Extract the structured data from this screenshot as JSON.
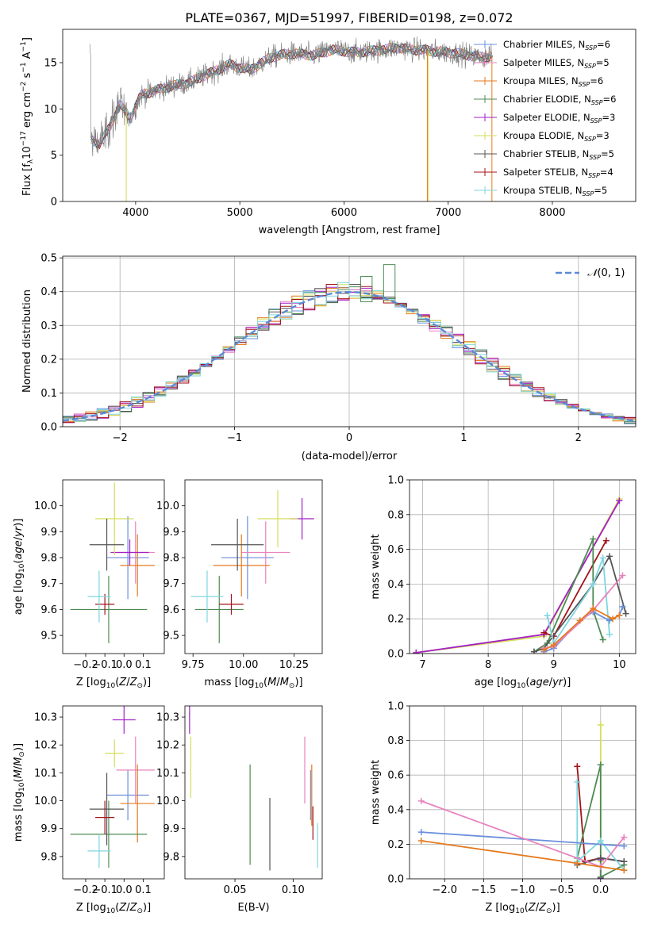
{
  "page_title": "PLATE=0367, MJD=51997, FIBERID=0198, z=0.072",
  "colors": {
    "CM": "#6a8fdc",
    "SM": "#e882bf",
    "KM": "#e57a1f",
    "CE": "#4e8a54",
    "SE": "#a31fc4",
    "KE": "#d5dd5a",
    "CS": "#555555",
    "SS": "#a3131a",
    "KS": "#7ed6df",
    "gauss": "#5b8ad6"
  },
  "chart_data": [
    {
      "type": "line",
      "name": "spectrum",
      "xlabel": "wavelength [Angstrom, rest frame]",
      "ylabel": "Flux [f",
      "xlim": [
        3300,
        8800
      ],
      "ylim": [
        0,
        18.6
      ],
      "xticks": [
        "4000",
        "5000",
        "6000",
        "7000",
        "8000"
      ],
      "yticks": [
        "0",
        "5",
        "10",
        "15"
      ],
      "spectrum_knots": [
        [
          3570,
          6.8
        ],
        [
          3650,
          6.2
        ],
        [
          3750,
          8.0
        ],
        [
          3850,
          10.5
        ],
        [
          3950,
          9.0
        ],
        [
          4050,
          11.5
        ],
        [
          4200,
          12.0
        ],
        [
          4350,
          12.5
        ],
        [
          4500,
          12.8
        ],
        [
          4700,
          13.8
        ],
        [
          4900,
          14.8
        ],
        [
          5100,
          14.2
        ],
        [
          5300,
          15.6
        ],
        [
          5500,
          16.0
        ],
        [
          5700,
          15.8
        ],
        [
          5900,
          16.4
        ],
        [
          6100,
          16.1
        ],
        [
          6300,
          16.3
        ],
        [
          6500,
          16.6
        ],
        [
          6700,
          16.4
        ],
        [
          6900,
          16.2
        ],
        [
          7100,
          16.0
        ],
        [
          7300,
          15.6
        ],
        [
          7420,
          15.7
        ]
      ],
      "legend": [
        {
          "label": "Chabrier MILES, N",
          "key": "CM",
          "n": "=6"
        },
        {
          "label": "Salpeter MILES, N",
          "key": "SM",
          "n": "=5"
        },
        {
          "label": "Kroupa MILES, N",
          "key": "KM",
          "n": "=6"
        },
        {
          "label": "Chabrier ELODIE, N",
          "key": "CE",
          "n": "=6"
        },
        {
          "label": "Salpeter ELODIE, N",
          "key": "SE",
          "n": "=3"
        },
        {
          "label": "Kroupa ELODIE, N",
          "key": "KE",
          "n": "=3"
        },
        {
          "label": "Chabrier STELIB, N",
          "key": "CS",
          "n": "=5"
        },
        {
          "label": "Salpeter STELIB, N",
          "key": "SS",
          "n": "=4"
        },
        {
          "label": "Kroupa STELIB, N",
          "key": "KS",
          "n": "=5"
        }
      ]
    },
    {
      "type": "histogram",
      "name": "residuals",
      "xlabel": "(data-model)/error",
      "ylabel": "Normed distribution",
      "xlim": [
        -2.5,
        2.5
      ],
      "ylim": [
        0,
        0.505
      ],
      "xticks": [
        "−2",
        "−1",
        "0",
        "1",
        "2"
      ],
      "yticks": [
        "0.0",
        "0.1",
        "0.2",
        "0.3",
        "0.4",
        "0.5"
      ],
      "gauss_label": "(0, 1)"
    },
    {
      "type": "scatter",
      "name": "age_vs_Z",
      "xlabel": "Z [log",
      "ylabel": "age  [log",
      "xlim": [
        -0.32,
        0.21
      ],
      "ylim": [
        9.43,
        10.1
      ],
      "xticks": [
        "−0.2",
        "−0.1",
        "0.0",
        "0.1"
      ],
      "yticks": [
        "9.5",
        "9.6",
        "9.7",
        "9.8",
        "9.9",
        "10.0"
      ],
      "points": [
        {
          "key": "CM",
          "x": 0.02,
          "xe": 0.11,
          "y": 9.8,
          "ye": 0.16
        },
        {
          "key": "SM",
          "x": 0.06,
          "xe": 0.1,
          "y": 9.82,
          "ye": 0.12
        },
        {
          "key": "KM",
          "x": 0.07,
          "xe": 0.09,
          "y": 9.77,
          "ye": 0.12
        },
        {
          "key": "CE",
          "x": -0.08,
          "xe": 0.2,
          "y": 9.6,
          "ye": 0.13
        },
        {
          "key": "SE",
          "x": 0.03,
          "xe": 0.1,
          "y": 9.82,
          "ye": 0.05
        },
        {
          "key": "KE",
          "x": -0.05,
          "xe": 0.1,
          "y": 9.95,
          "ye": 0.14
        },
        {
          "key": "CS",
          "x": -0.09,
          "xe": 0.09,
          "y": 9.85,
          "ye": 0.1
        },
        {
          "key": "SS",
          "x": -0.1,
          "xe": 0.05,
          "y": 9.62,
          "ye": 0.04
        },
        {
          "key": "KS",
          "x": -0.13,
          "xe": 0.06,
          "y": 9.65,
          "ye": 0.1
        }
      ]
    },
    {
      "type": "scatter",
      "name": "age_vs_mass",
      "xlabel": "mass [log",
      "ylabel": "",
      "xlim": [
        9.71,
        10.39
      ],
      "ylim": [
        9.43,
        10.1
      ],
      "xticks": [
        "9.75",
        "10.00",
        "10.25"
      ],
      "yticks": [
        "9.5",
        "9.6",
        "9.7",
        "9.8",
        "9.9",
        "10.0"
      ],
      "points": [
        {
          "key": "CM",
          "x": 10.02,
          "xe": 0.13,
          "y": 9.8,
          "ye": 0.16
        },
        {
          "key": "SM",
          "x": 10.11,
          "xe": 0.12,
          "y": 9.82,
          "ye": 0.12
        },
        {
          "key": "KM",
          "x": 9.99,
          "xe": 0.14,
          "y": 9.77,
          "ye": 0.12
        },
        {
          "key": "CE",
          "x": 9.88,
          "xe": 0.12,
          "y": 9.6,
          "ye": 0.13
        },
        {
          "key": "SE",
          "x": 10.29,
          "xe": 0.06,
          "y": 9.95,
          "ye": 0.08
        },
        {
          "key": "KE",
          "x": 10.17,
          "xe": 0.1,
          "y": 9.95,
          "ye": 0.11
        },
        {
          "key": "CS",
          "x": 9.97,
          "xe": 0.13,
          "y": 9.85,
          "ye": 0.1
        },
        {
          "key": "SS",
          "x": 9.94,
          "xe": 0.06,
          "y": 9.62,
          "ye": 0.04
        },
        {
          "key": "KS",
          "x": 9.82,
          "xe": 0.08,
          "y": 9.65,
          "ye": 0.1
        }
      ]
    },
    {
      "type": "line",
      "name": "weight_vs_age",
      "xlabel": "age  [log",
      "ylabel": "mass weight",
      "xlim": [
        6.8,
        10.25
      ],
      "ylim": [
        0,
        1.0
      ],
      "xticks": [
        "7",
        "8",
        "9",
        "10"
      ],
      "yticks": [
        "0.0",
        "0.2",
        "0.4",
        "0.6",
        "0.8",
        "1.0"
      ],
      "series": [
        {
          "key": "KE",
          "x": [
            6.9,
            8.85,
            10.0
          ],
          "y": [
            0.005,
            0.1,
            0.89
          ]
        },
        {
          "key": "SE",
          "x": [
            6.9,
            8.85,
            10.0
          ],
          "y": [
            0.005,
            0.11,
            0.88
          ]
        },
        {
          "key": "SS",
          "x": [
            8.85,
            9.0,
            9.8
          ],
          "y": [
            0.12,
            0.1,
            0.65
          ]
        },
        {
          "key": "CE",
          "x": [
            8.7,
            8.9,
            9.6,
            9.6,
            9.75
          ],
          "y": [
            0.01,
            0.06,
            0.66,
            0.25,
            0.08
          ]
        },
        {
          "key": "CS",
          "x": [
            8.7,
            8.85,
            9.6,
            9.85,
            10.1
          ],
          "y": [
            0.01,
            0.03,
            0.4,
            0.56,
            0.23
          ]
        },
        {
          "key": "KS",
          "x": [
            8.9,
            9.0,
            9.6,
            9.75,
            9.85
          ],
          "y": [
            0.22,
            0.06,
            0.4,
            0.55,
            0.11
          ]
        },
        {
          "key": "CM",
          "x": [
            8.85,
            9.0,
            9.4,
            9.6,
            9.85,
            10.0,
            10.05
          ],
          "y": [
            0.01,
            0.03,
            0.19,
            0.24,
            0.19,
            0.22,
            0.27
          ]
        },
        {
          "key": "SM",
          "x": [
            8.85,
            9.0,
            9.6,
            10.05
          ],
          "y": [
            0.03,
            0.04,
            0.25,
            0.45
          ]
        },
        {
          "key": "KM",
          "x": [
            8.85,
            9.0,
            9.4,
            9.6,
            9.9,
            10.0
          ],
          "y": [
            0.02,
            0.05,
            0.19,
            0.26,
            0.2,
            0.22
          ]
        }
      ]
    },
    {
      "type": "scatter",
      "name": "mass_vs_Z",
      "xlabel": "Z [log",
      "ylabel": "mass [log",
      "xlim": [
        -0.32,
        0.21
      ],
      "ylim": [
        9.72,
        10.34
      ],
      "xticks": [
        "−0.2",
        "−0.1",
        "0.0",
        "0.1"
      ],
      "yticks": [
        "9.8",
        "9.9",
        "10.0",
        "10.1",
        "10.2",
        "10.3"
      ],
      "points": [
        {
          "key": "CM",
          "x": 0.02,
          "xe": 0.11,
          "y": 10.02,
          "ye": 0.09
        },
        {
          "key": "SM",
          "x": 0.06,
          "xe": 0.1,
          "y": 10.11,
          "ye": 0.12
        },
        {
          "key": "KM",
          "x": 0.07,
          "xe": 0.09,
          "y": 9.99,
          "ye": 0.14
        },
        {
          "key": "CE",
          "x": -0.08,
          "xe": 0.2,
          "y": 9.88,
          "ye": 0.12
        },
        {
          "key": "SE",
          "x": 0.0,
          "xe": 0.06,
          "y": 10.29,
          "ye": 0.05
        },
        {
          "key": "KE",
          "x": -0.05,
          "xe": 0.05,
          "y": 10.17,
          "ye": 0.05
        },
        {
          "key": "CS",
          "x": -0.09,
          "xe": 0.09,
          "y": 9.97,
          "ye": 0.13
        },
        {
          "key": "SS",
          "x": -0.1,
          "xe": 0.05,
          "y": 9.94,
          "ye": 0.06
        },
        {
          "key": "KS",
          "x": -0.13,
          "xe": 0.06,
          "y": 9.82,
          "ye": 0.06
        }
      ]
    },
    {
      "type": "scatter",
      "name": "mass_vs_ebv",
      "xlabel": "E(B-V)",
      "ylabel": "",
      "xlim": [
        0.007,
        0.125
      ],
      "ylim": [
        9.72,
        10.34
      ],
      "xticks": [
        "0.05",
        "0.10"
      ],
      "yticks": [
        "9.8",
        "9.9",
        "10.0",
        "10.1",
        "10.2",
        "10.3"
      ],
      "points": [
        {
          "key": "CM",
          "x": 0.115,
          "xe": 0.0,
          "y": 10.02,
          "ye": 0.09
        },
        {
          "key": "SM",
          "x": 0.11,
          "xe": 0.0,
          "y": 10.11,
          "ye": 0.12
        },
        {
          "key": "KM",
          "x": 0.116,
          "xe": 0.0,
          "y": 10.02,
          "ye": 0.11
        },
        {
          "key": "CE",
          "x": 0.063,
          "xe": 0.0,
          "y": 9.95,
          "ye": 0.18
        },
        {
          "key": "SE",
          "x": 0.011,
          "xe": 0.0,
          "y": 10.29,
          "ye": 0.05
        },
        {
          "key": "KE",
          "x": 0.012,
          "xe": 0.0,
          "y": 10.12,
          "ye": 0.11
        },
        {
          "key": "CS",
          "x": 0.08,
          "xe": 0.0,
          "y": 9.88,
          "ye": 0.13
        },
        {
          "key": "SS",
          "x": 0.117,
          "xe": 0.0,
          "y": 9.92,
          "ye": 0.06
        },
        {
          "key": "KS",
          "x": 0.121,
          "xe": 0.0,
          "y": 9.84,
          "ye": 0.08
        }
      ]
    },
    {
      "type": "line",
      "name": "weight_vs_Z",
      "xlabel": "Z [log",
      "ylabel": "mass weight",
      "xlim": [
        -2.45,
        0.45
      ],
      "ylim": [
        0,
        1.0
      ],
      "xticks": [
        "−2.0",
        "−1.5",
        "−1.0",
        "−0.5",
        "0.0"
      ],
      "yticks": [
        "0.0",
        "0.2",
        "0.4",
        "0.6",
        "0.8",
        "1.0"
      ],
      "series": [
        {
          "key": "KE",
          "x": [
            0.0,
            0.0,
            0.0
          ],
          "y": [
            0.005,
            0.1,
            0.89
          ]
        },
        {
          "key": "SE",
          "x": [
            0.0,
            0.0
          ],
          "y": [
            0.11,
            0.005
          ]
        },
        {
          "key": "SS",
          "x": [
            -0.3,
            -0.2,
            0.0,
            0.3
          ],
          "y": [
            0.65,
            0.1,
            0.12,
            0.1
          ]
        },
        {
          "key": "CE",
          "x": [
            -0.3,
            0.0,
            0.0,
            0.3
          ],
          "y": [
            0.12,
            0.66,
            0.01,
            0.08
          ]
        },
        {
          "key": "CS",
          "x": [
            -0.3,
            0.0,
            0.3
          ],
          "y": [
            0.08,
            0.12,
            0.1
          ]
        },
        {
          "key": "KS",
          "x": [
            -0.3,
            -0.3,
            0.0,
            0.3
          ],
          "y": [
            0.56,
            0.1,
            0.22,
            0.05
          ]
        },
        {
          "key": "CM",
          "x": [
            -2.3,
            0.3
          ],
          "y": [
            0.27,
            0.19
          ]
        },
        {
          "key": "SM",
          "x": [
            -2.3,
            0.0,
            0.3
          ],
          "y": [
            0.45,
            0.07,
            0.24
          ]
        },
        {
          "key": "KM",
          "x": [
            -2.3,
            -0.3,
            0.3
          ],
          "y": [
            0.22,
            0.09,
            0.05
          ]
        }
      ]
    }
  ]
}
